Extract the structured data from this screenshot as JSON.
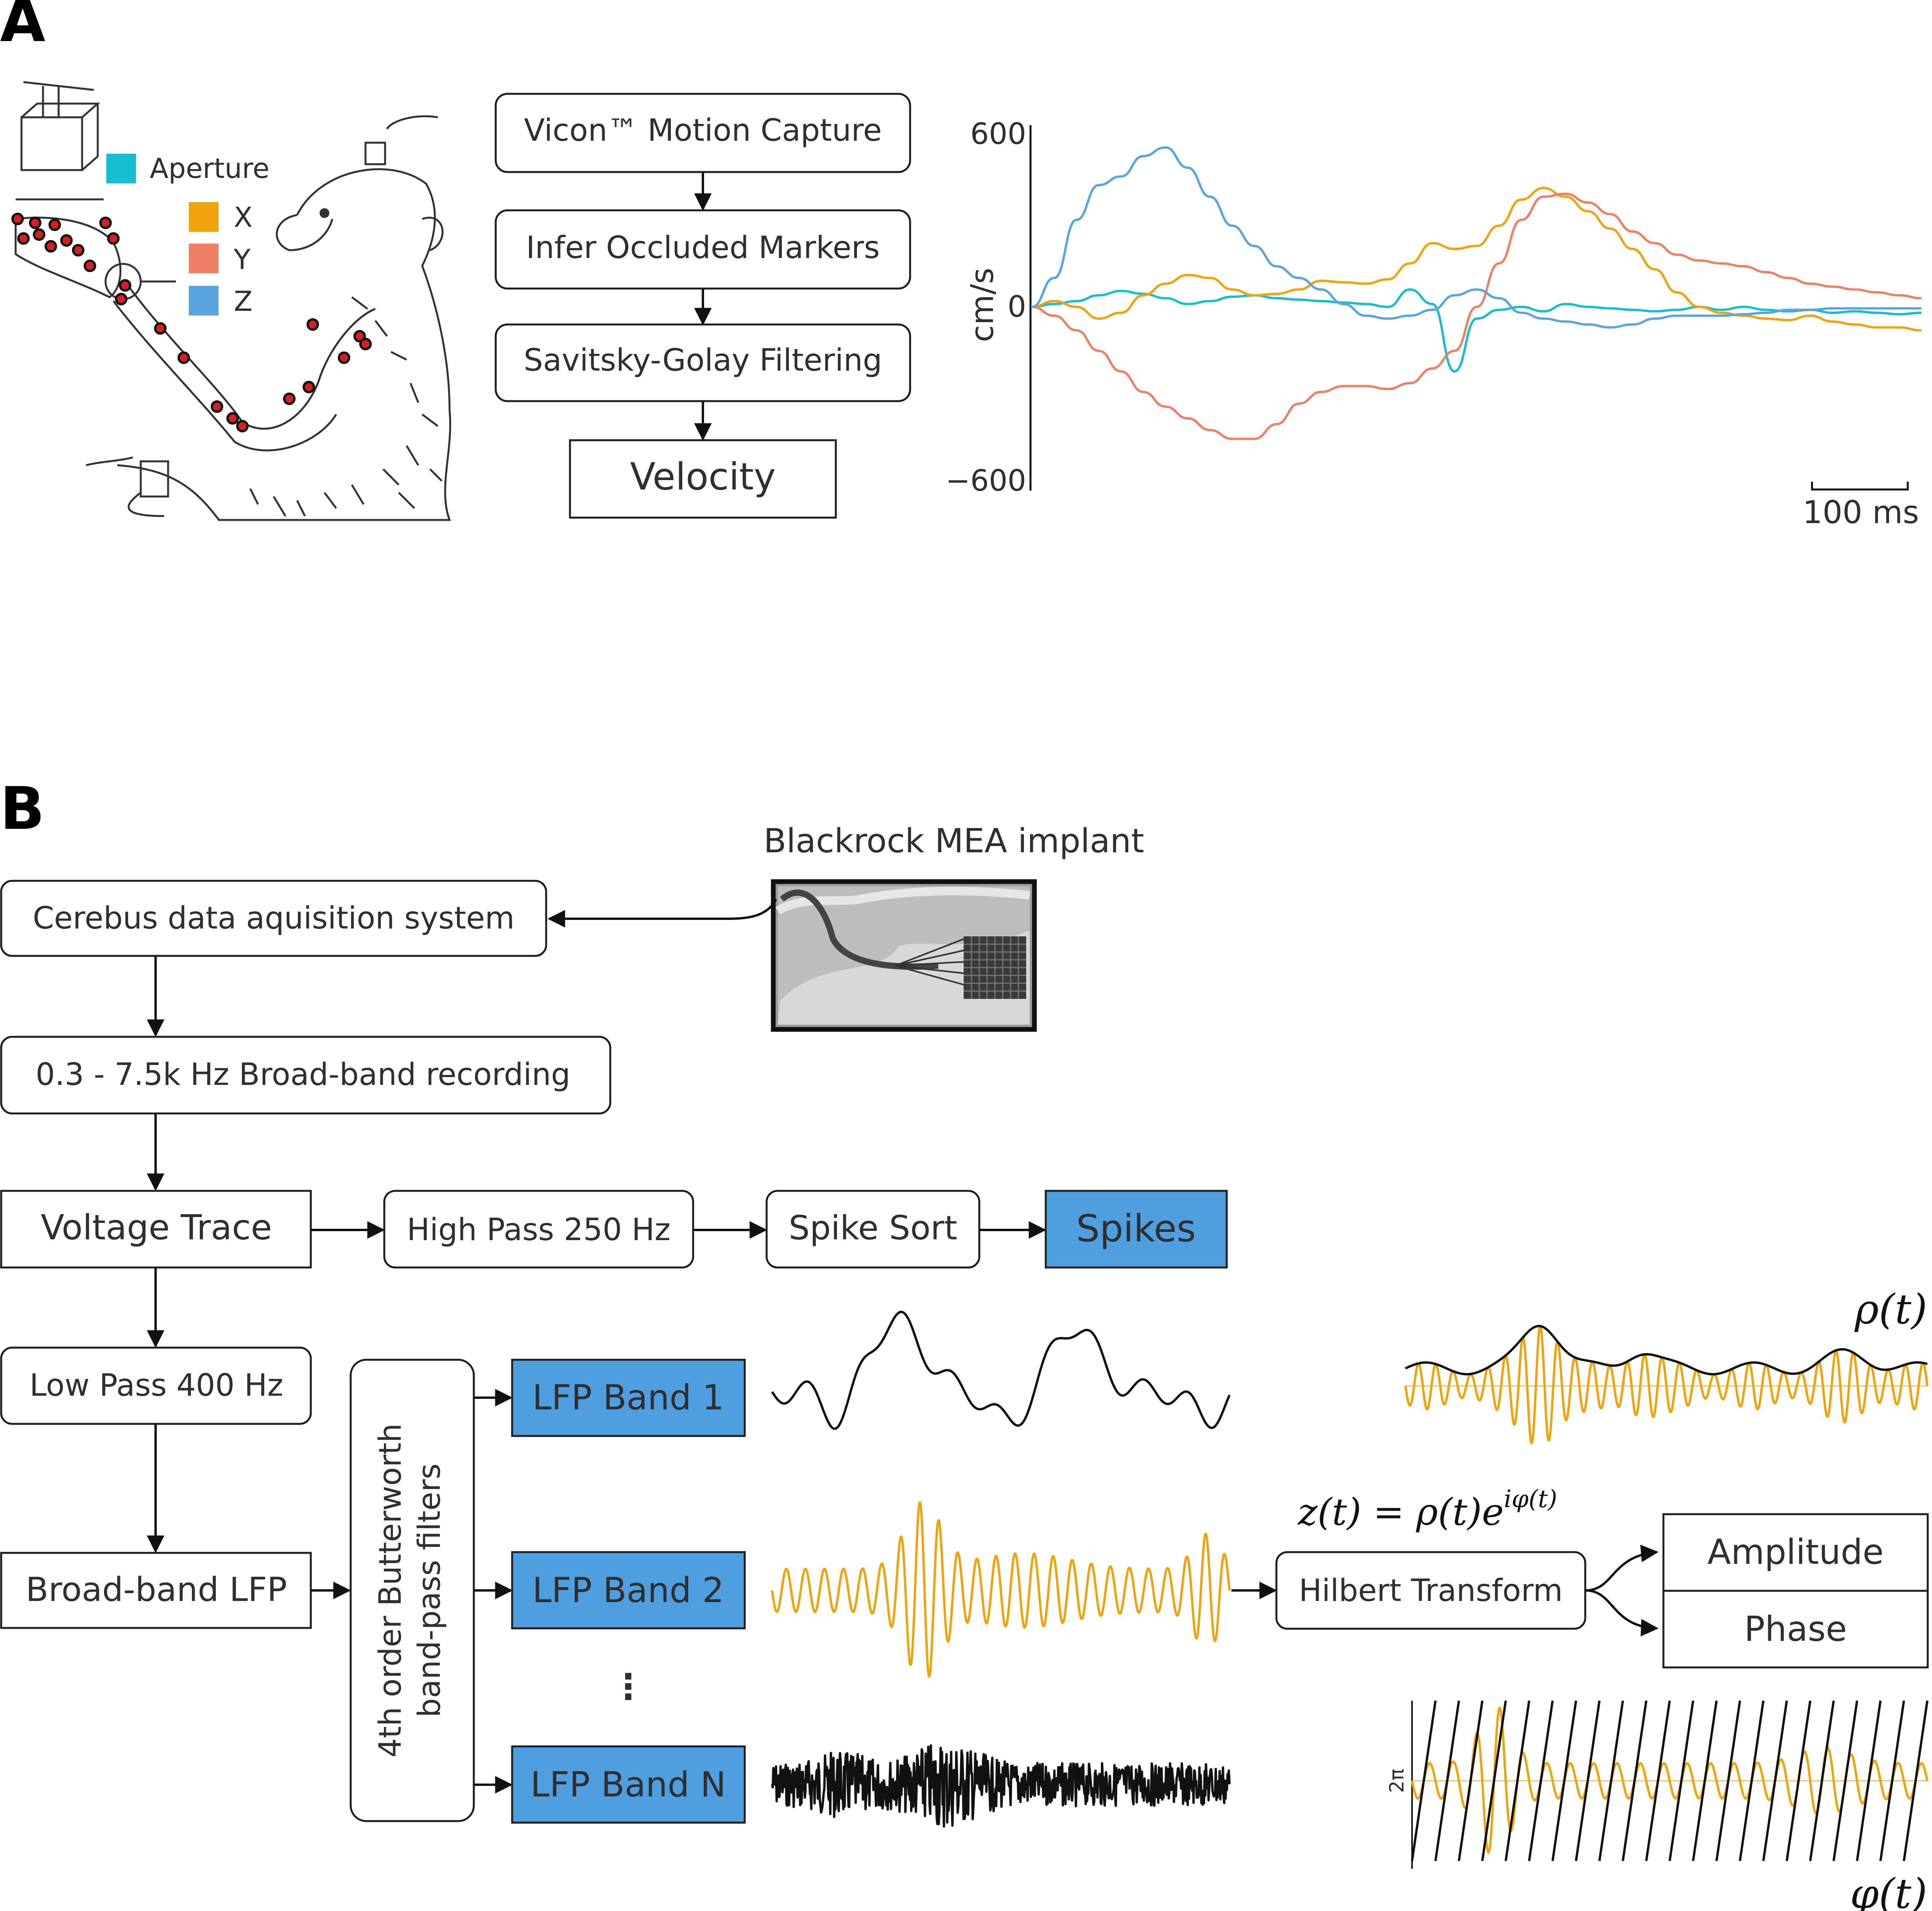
{
  "panel_a": {
    "label": "A",
    "legend": [
      {
        "name": "Aperture",
        "color": "#17becf"
      },
      {
        "name": "X",
        "color": "#f0a30a"
      },
      {
        "name": "Y",
        "color": "#ef8064"
      },
      {
        "name": "Z",
        "color": "#5aa5e0"
      }
    ],
    "pipeline": [
      "Vicon™ Motion Capture",
      "Infer Occluded Markers",
      "Savitsky-Golay Filtering",
      "Velocity"
    ],
    "illustration_icon": "monkey-reaching-illustration"
  },
  "panel_b": {
    "label": "B",
    "implant_title": "Blackrock MEA implant",
    "implant_icon": "mea-implant-photo",
    "cerebus": "Cerebus data aquisition system",
    "broadband_recording": "0.3 - 7.5k Hz Broad-band recording",
    "voltage_trace": "Voltage Trace",
    "high_pass": "High Pass 250 Hz",
    "spike_sort": "Spike Sort",
    "spikes": "Spikes",
    "low_pass": "Low Pass 400 Hz",
    "broadband_lfp": "Broad-band LFP",
    "filter_line1": "4th order Butterworth",
    "filter_line2": "band-pass filters",
    "bands": [
      "LFP Band 1",
      "LFP Band 2",
      "LFP Band N"
    ],
    "ellipsis": "⋮",
    "hilbert": "Hilbert Transform",
    "equation": "z(t) = ρ(t)e",
    "equation_exp": "iφ(t)",
    "amplitude": "Amplitude",
    "phase": "Phase",
    "rho_label": "ρ(t)",
    "phi_label": "φ(t)",
    "two_pi": "2π"
  },
  "chart_data": {
    "type": "line",
    "ylabel": "cm/s",
    "ylim": [
      -600,
      600
    ],
    "yticks": [
      "600",
      "0",
      "−600"
    ],
    "scale_bar": "100 ms",
    "x_unit": "ms",
    "series": [
      {
        "name": "Aperture",
        "color": "#17becf",
        "x": [
          0,
          25,
          50,
          75,
          100,
          125,
          150,
          175,
          200,
          225,
          250,
          275,
          300,
          325,
          350,
          375,
          400,
          425,
          450,
          475,
          500,
          525,
          550,
          575,
          600,
          625,
          650,
          675,
          700,
          725,
          750,
          775,
          800,
          825,
          850,
          875,
          900,
          925,
          950,
          975,
          1000
        ],
        "y": [
          0,
          10,
          20,
          40,
          55,
          45,
          30,
          10,
          20,
          35,
          40,
          30,
          25,
          20,
          15,
          10,
          0,
          60,
          10,
          -220,
          -40,
          -10,
          0,
          -15,
          10,
          0,
          -5,
          -10,
          -15,
          -10,
          0,
          -10,
          0,
          -10,
          -15,
          -10,
          -20,
          -15,
          -20,
          -25,
          -20
        ]
      },
      {
        "name": "X",
        "color": "#f0a30a",
        "x": [
          0,
          25,
          50,
          75,
          100,
          125,
          150,
          175,
          200,
          225,
          250,
          275,
          300,
          325,
          350,
          375,
          400,
          425,
          450,
          475,
          500,
          525,
          550,
          575,
          600,
          625,
          650,
          675,
          700,
          725,
          750,
          775,
          800,
          825,
          850,
          875,
          900,
          925,
          950,
          975,
          1000
        ],
        "y": [
          0,
          20,
          0,
          -40,
          -20,
          40,
          80,
          110,
          100,
          60,
          40,
          45,
          60,
          90,
          85,
          80,
          95,
          150,
          220,
          200,
          210,
          280,
          370,
          410,
          380,
          330,
          270,
          200,
          130,
          50,
          0,
          -20,
          -30,
          -40,
          -45,
          -30,
          -50,
          -60,
          -70,
          -70,
          -80
        ]
      },
      {
        "name": "Y",
        "color": "#ef8064",
        "x": [
          0,
          25,
          50,
          75,
          100,
          125,
          150,
          175,
          200,
          225,
          250,
          275,
          300,
          325,
          350,
          375,
          400,
          425,
          450,
          475,
          500,
          525,
          550,
          575,
          600,
          625,
          650,
          675,
          700,
          725,
          750,
          775,
          800,
          825,
          850,
          875,
          900,
          925,
          950,
          975,
          1000
        ],
        "y": [
          0,
          -30,
          -80,
          -150,
          -220,
          -290,
          -340,
          -380,
          -420,
          -450,
          -450,
          -400,
          -330,
          -290,
          -270,
          -270,
          -280,
          -260,
          -210,
          -150,
          0,
          150,
          300,
          380,
          390,
          360,
          320,
          260,
          220,
          180,
          160,
          150,
          140,
          120,
          100,
          80,
          70,
          60,
          50,
          40,
          30
        ]
      },
      {
        "name": "Z",
        "color": "#5aa5e0",
        "x": [
          0,
          25,
          50,
          75,
          100,
          125,
          150,
          175,
          200,
          225,
          250,
          275,
          300,
          325,
          350,
          375,
          400,
          425,
          450,
          475,
          500,
          525,
          550,
          575,
          600,
          625,
          650,
          675,
          700,
          725,
          750,
          775,
          800,
          825,
          850,
          875,
          900,
          925,
          950,
          975,
          1000
        ],
        "y": [
          0,
          100,
          300,
          420,
          450,
          520,
          550,
          480,
          380,
          280,
          210,
          140,
          100,
          60,
          10,
          -30,
          -40,
          -30,
          -10,
          40,
          60,
          30,
          -20,
          -40,
          -50,
          -60,
          -70,
          -60,
          -40,
          -30,
          -30,
          -30,
          -25,
          -20,
          -10,
          -10,
          -5,
          -5,
          -5,
          -5,
          -5
        ]
      }
    ]
  }
}
